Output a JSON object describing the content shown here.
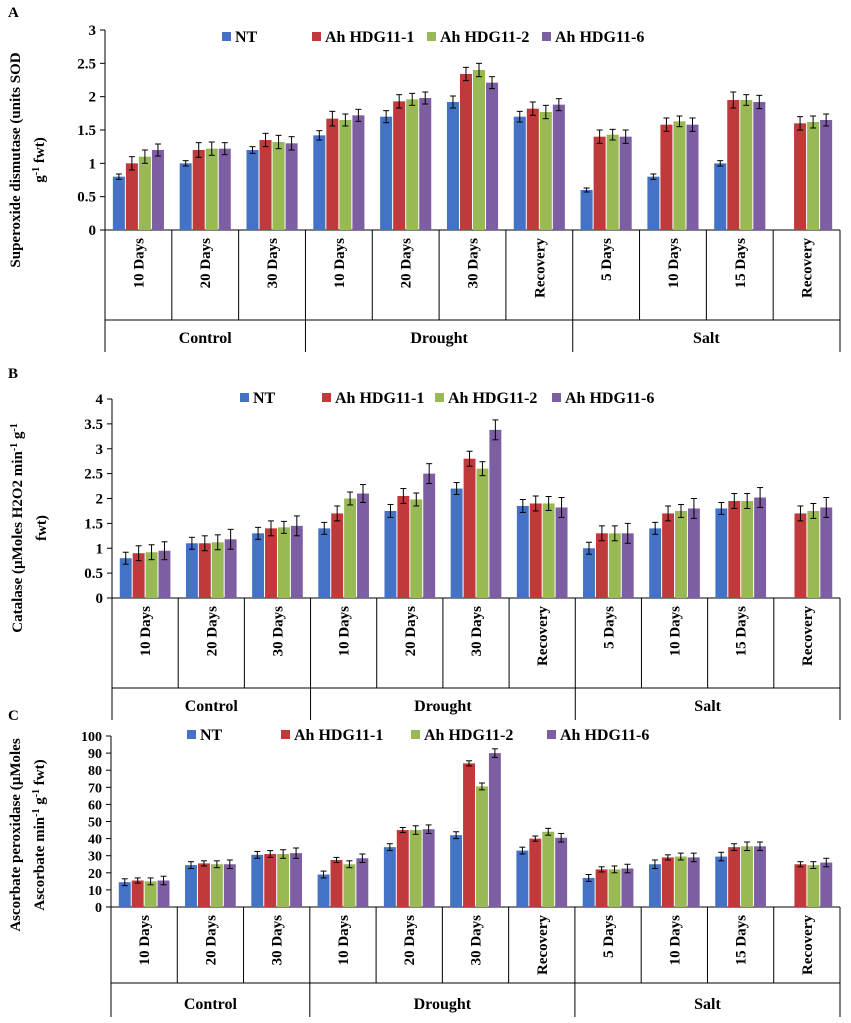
{
  "series_colors": [
    "#4472C4",
    "#C0393B",
    "#98B954",
    "#7E5EA3"
  ],
  "chart_data": [
    {
      "type": "bar",
      "panel_label": "A",
      "ylabel_lines": [
        "Superoxide dismutase (units SOD",
        "g-1 fwt)"
      ],
      "ylim": [
        0,
        3
      ],
      "yticks": [
        0,
        0.5,
        1,
        1.5,
        2,
        2.5,
        3
      ],
      "ytick_labels": [
        "0",
        "0.5",
        "1",
        "1.5",
        "2",
        "2.5",
        "3"
      ],
      "categories": [
        "10 Days",
        "20 Days",
        "30 Days",
        "10 Days",
        "20 Days",
        "30 Days",
        "Recovery",
        "5 Days",
        "10 Days",
        "15 Days",
        "Recovery"
      ],
      "groups": [
        {
          "label": "Control",
          "span": [
            0,
            2
          ]
        },
        {
          "label": "Drought",
          "span": [
            3,
            6
          ]
        },
        {
          "label": "Salt",
          "span": [
            7,
            10
          ]
        }
      ],
      "legend_labels": [
        "NT",
        "Ah HDG11-1",
        "Ah HDG11-2",
        "Ah HDG11-6"
      ],
      "series": [
        {
          "name": "NT",
          "values": [
            0.8,
            1.0,
            1.2,
            1.42,
            1.7,
            1.92,
            1.7,
            0.6,
            0.8,
            1.0,
            null
          ],
          "errors": [
            0.04,
            0.04,
            0.05,
            0.07,
            0.09,
            0.09,
            0.08,
            0.03,
            0.04,
            0.04,
            null
          ]
        },
        {
          "name": "Ah HDG11-1",
          "values": [
            1.0,
            1.2,
            1.35,
            1.67,
            1.93,
            2.34,
            1.82,
            1.4,
            1.58,
            1.95,
            1.6
          ],
          "errors": [
            0.1,
            0.11,
            0.1,
            0.11,
            0.1,
            0.1,
            0.1,
            0.1,
            0.1,
            0.12,
            0.1
          ]
        },
        {
          "name": "Ah HDG11-2",
          "values": [
            1.1,
            1.22,
            1.32,
            1.65,
            1.96,
            2.4,
            1.77,
            1.43,
            1.63,
            1.95,
            1.62
          ],
          "errors": [
            0.1,
            0.1,
            0.1,
            0.09,
            0.09,
            0.1,
            0.1,
            0.08,
            0.08,
            0.08,
            0.09
          ]
        },
        {
          "name": "Ah HDG11-6",
          "values": [
            1.2,
            1.22,
            1.3,
            1.72,
            1.98,
            2.21,
            1.88,
            1.4,
            1.58,
            1.92,
            1.65
          ],
          "errors": [
            0.09,
            0.09,
            0.1,
            0.09,
            0.09,
            0.09,
            0.09,
            0.1,
            0.1,
            0.1,
            0.09
          ]
        }
      ]
    },
    {
      "type": "bar",
      "panel_label": "B",
      "ylabel_lines": [
        "Catalase (µMoles H2O2 min-1 g-1",
        "fwt)"
      ],
      "ylim": [
        0,
        4
      ],
      "yticks": [
        0,
        0.5,
        1,
        1.5,
        2,
        2.5,
        3,
        3.5,
        4
      ],
      "ytick_labels": [
        "0",
        "0.5",
        "1",
        "1.5",
        "2",
        "2.5",
        "3",
        "3.5",
        "4"
      ],
      "categories": [
        "10 Days",
        "20 Days",
        "30 Days",
        "10 Days",
        "20 Days",
        "30 Days",
        "Recovery",
        "5 Days",
        "10 Days",
        "15 Days",
        "Recovery"
      ],
      "groups": [
        {
          "label": "Control",
          "span": [
            0,
            2
          ]
        },
        {
          "label": "Drought",
          "span": [
            3,
            6
          ]
        },
        {
          "label": "Salt",
          "span": [
            7,
            10
          ]
        }
      ],
      "legend_labels": [
        "NT",
        "Ah HDG11-1",
        "Ah HDG11-2",
        "Ah HDG11-6"
      ],
      "series": [
        {
          "name": "NT",
          "values": [
            0.8,
            1.1,
            1.3,
            1.4,
            1.75,
            2.2,
            1.85,
            1.0,
            1.4,
            1.8,
            null
          ],
          "errors": [
            0.12,
            0.12,
            0.12,
            0.12,
            0.13,
            0.12,
            0.13,
            0.12,
            0.12,
            0.12,
            null
          ]
        },
        {
          "name": "Ah HDG11-1",
          "values": [
            0.9,
            1.1,
            1.4,
            1.7,
            2.05,
            2.8,
            1.9,
            1.3,
            1.7,
            1.95,
            1.7
          ],
          "errors": [
            0.15,
            0.15,
            0.15,
            0.15,
            0.15,
            0.15,
            0.15,
            0.15,
            0.15,
            0.15,
            0.15
          ]
        },
        {
          "name": "Ah HDG11-2",
          "values": [
            0.92,
            1.12,
            1.42,
            2.0,
            1.98,
            2.6,
            1.9,
            1.3,
            1.75,
            1.95,
            1.75
          ],
          "errors": [
            0.15,
            0.15,
            0.12,
            0.13,
            0.13,
            0.14,
            0.14,
            0.15,
            0.13,
            0.15,
            0.15
          ]
        },
        {
          "name": "Ah HDG11-6",
          "values": [
            0.95,
            1.18,
            1.45,
            2.1,
            2.5,
            3.38,
            1.82,
            1.3,
            1.8,
            2.02,
            1.82
          ],
          "errors": [
            0.18,
            0.2,
            0.2,
            0.18,
            0.2,
            0.2,
            0.2,
            0.2,
            0.2,
            0.2,
            0.2
          ]
        }
      ]
    },
    {
      "type": "bar",
      "panel_label": "C",
      "ylabel_lines": [
        "Ascorbate peroxidase (µMoles",
        "Ascorbate min-1 g-1 fwt)"
      ],
      "ylim": [
        0,
        100
      ],
      "yticks": [
        0,
        10,
        20,
        30,
        40,
        50,
        60,
        70,
        80,
        90,
        100
      ],
      "ytick_labels": [
        "0",
        "10",
        "20",
        "30",
        "40",
        "50",
        "60",
        "70",
        "80",
        "90",
        "100"
      ],
      "categories": [
        "10 Days",
        "20 Days",
        "30 Days",
        "10 Days",
        "20 Days",
        "30 Days",
        "Recovery",
        "5 Days",
        "10 Days",
        "15 Days",
        "Recovery"
      ],
      "groups": [
        {
          "label": "Control",
          "span": [
            0,
            2
          ]
        },
        {
          "label": "Drought",
          "span": [
            3,
            6
          ]
        },
        {
          "label": "Salt",
          "span": [
            7,
            10
          ]
        }
      ],
      "legend_labels": [
        "NT",
        "Ah HDG11-1",
        "Ah HDG11-2",
        "Ah HDG11-6"
      ],
      "series": [
        {
          "name": "NT",
          "values": [
            14.5,
            24.5,
            30.5,
            19,
            35,
            42,
            33,
            17,
            25,
            29.5,
            null
          ],
          "errors": [
            2,
            2,
            2,
            2,
            2,
            2,
            2,
            2,
            2.5,
            2.5,
            null
          ]
        },
        {
          "name": "Ah HDG11-1",
          "values": [
            15.5,
            25.5,
            31,
            27.5,
            45,
            84,
            40,
            22,
            29,
            35,
            25
          ],
          "errors": [
            1.5,
            1.5,
            2,
            1.5,
            1.5,
            1.5,
            1.5,
            1.5,
            1.5,
            2,
            1.5
          ]
        },
        {
          "name": "Ah HDG11-2",
          "values": [
            15,
            25,
            31,
            25,
            45,
            70.5,
            44,
            22,
            29.5,
            35.5,
            24.5
          ],
          "errors": [
            2,
            2,
            2.5,
            2,
            2.5,
            2,
            2,
            2,
            2,
            2.5,
            2
          ]
        },
        {
          "name": "Ah HDG11-6",
          "values": [
            15.5,
            25,
            31.5,
            28.5,
            45.5,
            90,
            40.5,
            22.5,
            29,
            35.5,
            26
          ],
          "errors": [
            2.5,
            2.5,
            3,
            2.5,
            2.5,
            2.5,
            2.5,
            2.5,
            2.5,
            2.5,
            2.5
          ]
        }
      ]
    }
  ]
}
